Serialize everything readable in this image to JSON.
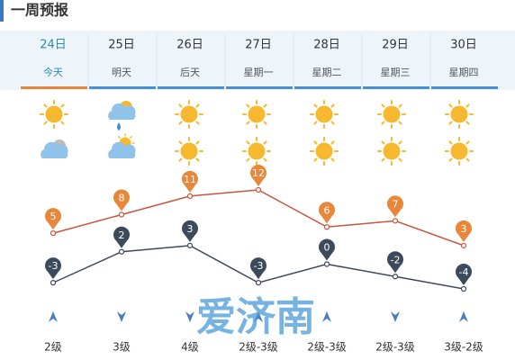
{
  "header": {
    "title": "一周预报"
  },
  "weekdays": [
    "今天",
    "明天",
    "后天",
    "星期一",
    "星期二",
    "星期三",
    "星期四"
  ],
  "chart_data": {
    "type": "line",
    "categories": [
      "24日",
      "25日",
      "26日",
      "27日",
      "28日",
      "29日",
      "30日"
    ],
    "series": [
      {
        "color": "#c8553d",
        "marker_color": "#e8873a",
        "values": [
          5,
          8,
          11,
          12,
          6,
          7,
          3
        ]
      },
      {
        "color": "#3d4a5c",
        "marker_color": "#3d4a5c",
        "values": [
          -3,
          2,
          3,
          -3,
          0,
          -2,
          -4
        ]
      }
    ]
  },
  "wind": [
    "2级",
    "3级",
    "4级",
    "2级-3级",
    "2级-3级",
    "2级-3级",
    "3级-2级"
  ],
  "watermark": "爱济南"
}
